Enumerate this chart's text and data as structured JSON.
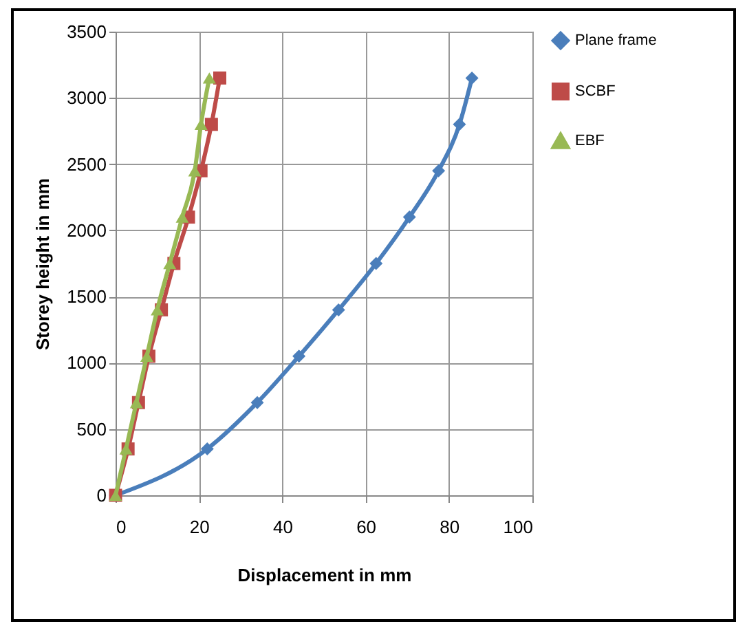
{
  "chart_data": {
    "type": "line",
    "xlabel": "Displacement in mm",
    "ylabel": "Storey height in mm",
    "series": [
      {
        "name": "Plane frame",
        "color": "#4a7ebb",
        "marker": "diamond",
        "x": [
          0,
          22,
          34,
          44,
          53.5,
          62.5,
          70.5,
          77.5,
          82.5,
          85.5
        ],
        "values": [
          0,
          350,
          700,
          1050,
          1400,
          1750,
          2100,
          2450,
          2800,
          3150
        ]
      },
      {
        "name": "SCBF",
        "color": "#be4b48",
        "marker": "square",
        "x": [
          0,
          3,
          5.5,
          8,
          11,
          14,
          17.5,
          20.5,
          23,
          25
        ],
        "values": [
          0,
          350,
          700,
          1050,
          1400,
          1750,
          2100,
          2450,
          2800,
          3150
        ]
      },
      {
        "name": "EBF",
        "color": "#98b954",
        "marker": "triangle",
        "x": [
          0,
          2.5,
          5,
          7.5,
          10,
          13,
          16,
          19,
          20.5,
          22.5
        ],
        "values": [
          0,
          350,
          700,
          1050,
          1400,
          1750,
          2100,
          2450,
          2800,
          3150
        ]
      }
    ],
    "xlim": [
      0,
      100
    ],
    "xticks": [
      0,
      20,
      40,
      60,
      80,
      100
    ],
    "ylim": [
      0,
      3500
    ],
    "yticks": [
      0,
      500,
      1000,
      1500,
      2000,
      2500,
      3000,
      3500
    ],
    "grid": true,
    "legend": "right"
  }
}
